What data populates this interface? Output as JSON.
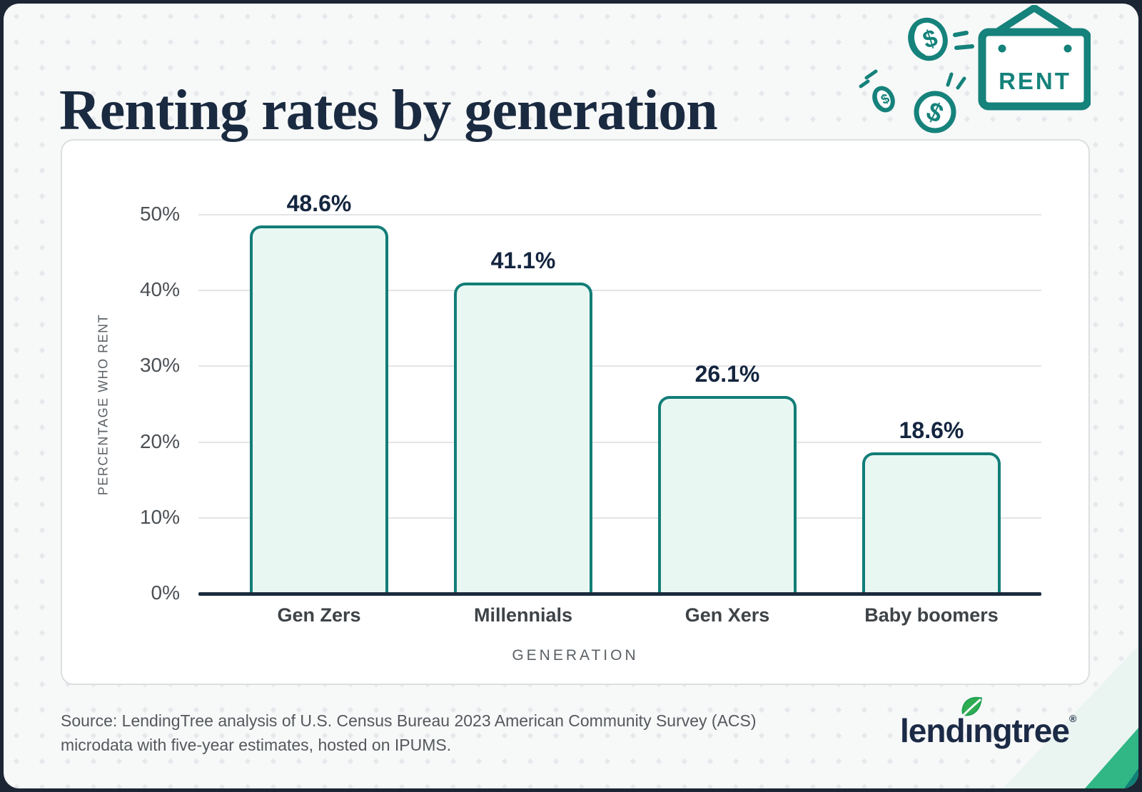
{
  "header": {
    "title": "Renting rates by generation"
  },
  "illustration": {
    "sign_label": "RENT",
    "coin_symbol": "$",
    "teal": "#15827B"
  },
  "chart_data": {
    "type": "bar",
    "title": "Renting rates by generation",
    "categories": [
      "Gen Zers",
      "Millennials",
      "Gen Xers",
      "Baby boomers"
    ],
    "values": [
      48.6,
      41.1,
      26.1,
      18.6
    ],
    "value_labels": [
      "48.6%",
      "41.1%",
      "26.1%",
      "18.6%"
    ],
    "xlabel": "GENERATION",
    "ylabel": "PERCENTAGE WHO RENT",
    "ylim": [
      0,
      50
    ],
    "yticks": [
      0,
      10,
      20,
      30,
      40,
      50
    ],
    "ytick_labels": [
      "0%",
      "10%",
      "20%",
      "30%",
      "40%",
      "50%"
    ],
    "grid": true,
    "legend": false,
    "bar_fill": "#E9F7F2",
    "bar_border": "#127D78",
    "label_color": "#14253F"
  },
  "footer": {
    "source_line1": "Source: LendingTree analysis of U.S. Census Bureau 2023 American Community Survey (ACS)",
    "source_line2": "microdata with five-year estimates, hosted on IPUMS.",
    "logo": {
      "text": "lendingtree",
      "reg": "®"
    }
  },
  "colors": {
    "frame_navy": "#1B2533",
    "card_bg": "#f7f8f8",
    "title_navy": "#1A2A40",
    "axis_navy": "#1B2B3D",
    "grid_gray": "#e3e4e6",
    "corner_mint": "#EAF4F0",
    "corner_green": "#31B686",
    "corner_teal": "#118077",
    "leaf_green": "#2EAC52"
  }
}
